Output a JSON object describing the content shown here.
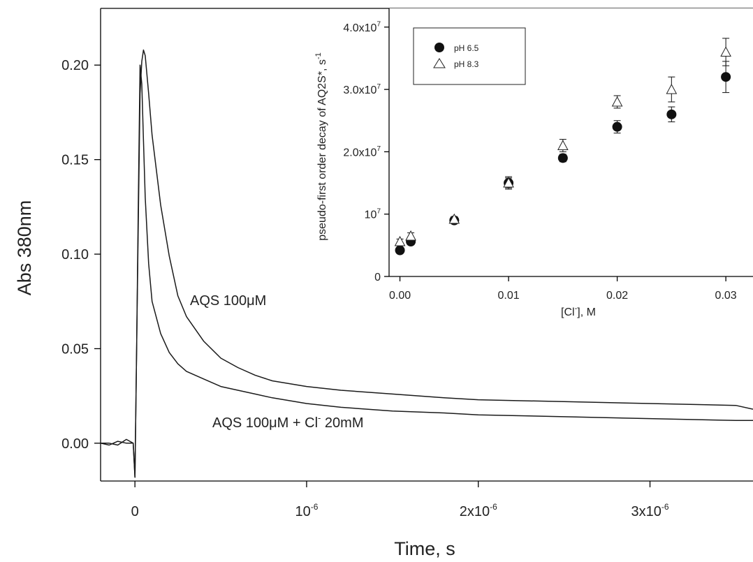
{
  "chart_data": [
    {
      "type": "line",
      "xlabel": "Time, s",
      "ylabel": "Abs 380nm",
      "xlim": [
        -2e-07,
        3.6e-06
      ],
      "ylim": [
        -0.02,
        0.23
      ],
      "x_ticks": [
        {
          "value": 0,
          "mant": "0",
          "exp": ""
        },
        {
          "value": 1e-06,
          "mant": "10",
          "exp": "-6"
        },
        {
          "value": 2e-06,
          "mant": "2x10",
          "exp": "-6"
        },
        {
          "value": 3e-06,
          "mant": "3x10",
          "exp": "-6"
        }
      ],
      "y_ticks": [
        {
          "value": 0.0,
          "label": "0.00"
        },
        {
          "value": 0.05,
          "label": "0.05"
        },
        {
          "value": 0.1,
          "label": "0.10"
        },
        {
          "value": 0.15,
          "label": "0.15"
        },
        {
          "value": 0.2,
          "label": "0.20"
        }
      ],
      "annotations": [
        {
          "text": "AQS 100μM"
        },
        {
          "text": "AQS 100μM + Cl",
          "sup": "-",
          "tail": " 20mM"
        }
      ],
      "series": [
        {
          "name": "AQS 100μM",
          "x": [
            -2e-07,
            -1.5e-07,
            -1e-07,
            -5e-08,
            -1e-08,
            0,
            1e-08,
            2e-08,
            3e-08,
            4e-08,
            5e-08,
            6e-08,
            8e-08,
            1e-07,
            1.5e-07,
            2e-07,
            2.5e-07,
            3e-07,
            4e-07,
            5e-07,
            6e-07,
            7e-07,
            8e-07,
            1e-06,
            1.2e-06,
            1.5e-06,
            1.8e-06,
            2e-06,
            2.5e-06,
            3e-06,
            3.5e-06,
            3.6e-06
          ],
          "y": [
            0.0,
            0.0,
            -0.001,
            0.002,
            0.0,
            -0.018,
            0.05,
            0.12,
            0.185,
            0.202,
            0.208,
            0.205,
            0.185,
            0.163,
            0.126,
            0.099,
            0.078,
            0.067,
            0.054,
            0.045,
            0.04,
            0.036,
            0.033,
            0.03,
            0.028,
            0.026,
            0.024,
            0.023,
            0.022,
            0.021,
            0.02,
            0.018
          ]
        },
        {
          "name": "AQS 100μM + Cl- 20mM",
          "x": [
            -2e-07,
            -1.5e-07,
            -1e-07,
            -5e-08,
            -1e-08,
            0,
            1e-08,
            2e-08,
            3e-08,
            4e-08,
            5e-08,
            6e-08,
            8e-08,
            1e-07,
            1.5e-07,
            2e-07,
            2.5e-07,
            3e-07,
            4e-07,
            5e-07,
            6e-07,
            7e-07,
            8e-07,
            1e-06,
            1.2e-06,
            1.5e-06,
            1.8e-06,
            2e-06,
            2.5e-06,
            3e-06,
            3.5e-06,
            3.6e-06
          ],
          "y": [
            0.0,
            -0.001,
            0.001,
            0.0,
            0.0,
            -0.018,
            0.05,
            0.13,
            0.2,
            0.19,
            0.16,
            0.13,
            0.095,
            0.075,
            0.058,
            0.048,
            0.042,
            0.038,
            0.034,
            0.03,
            0.028,
            0.026,
            0.024,
            0.021,
            0.019,
            0.017,
            0.016,
            0.015,
            0.014,
            0.013,
            0.012,
            0.012
          ]
        }
      ]
    },
    {
      "type": "scatter",
      "xlabel": "[Cl",
      "xlabel_sup": "-",
      "xlabel_tail": "], M",
      "ylabel": "pseudo-first order decay of AQ2S*, s",
      "ylabel_sup": "-1",
      "xlim": [
        -0.001,
        0.0325
      ],
      "ylim": [
        0,
        43000000.0
      ],
      "x_ticks": [
        {
          "value": 0.0,
          "label": "0.00"
        },
        {
          "value": 0.01,
          "label": "0.01"
        },
        {
          "value": 0.02,
          "label": "0.02"
        },
        {
          "value": 0.03,
          "label": "0.03"
        }
      ],
      "y_ticks": [
        {
          "value": 0,
          "mant": "0",
          "exp": ""
        },
        {
          "value": 10000000.0,
          "mant": "10",
          "exp": "7"
        },
        {
          "value": 20000000.0,
          "mant": "2.0x10",
          "exp": "7"
        },
        {
          "value": 30000000.0,
          "mant": "3.0x10",
          "exp": "7"
        },
        {
          "value": 40000000.0,
          "mant": "4.0x10",
          "exp": "7"
        }
      ],
      "legend_position": "top-left",
      "series": [
        {
          "name": "pH 6.5",
          "marker": "filled-circle",
          "x": [
            0,
            0.001,
            0.005,
            0.01,
            0.015,
            0.02,
            0.025,
            0.03
          ],
          "y": [
            4200000.0,
            5600000.0,
            9000000.0,
            15000000.0,
            19000000.0,
            24000000.0,
            26000000.0,
            32000000.0
          ],
          "err": [
            400000.0,
            500000.0,
            400000.0,
            800000.0,
            600000.0,
            1000000.0,
            1200000.0,
            2500000.0
          ]
        },
        {
          "name": "pH 8.3",
          "marker": "open-triangle",
          "x": [
            0,
            0.001,
            0.005,
            0.01,
            0.015,
            0.02,
            0.025,
            0.03
          ],
          "y": [
            5600000.0,
            6500000.0,
            9200000.0,
            15000000.0,
            21000000.0,
            28000000.0,
            30000000.0,
            36000000.0
          ],
          "err": [
            400000.0,
            500000.0,
            400000.0,
            1000000.0,
            1000000.0,
            1000000.0,
            2000000.0,
            2200000.0
          ]
        }
      ]
    }
  ]
}
